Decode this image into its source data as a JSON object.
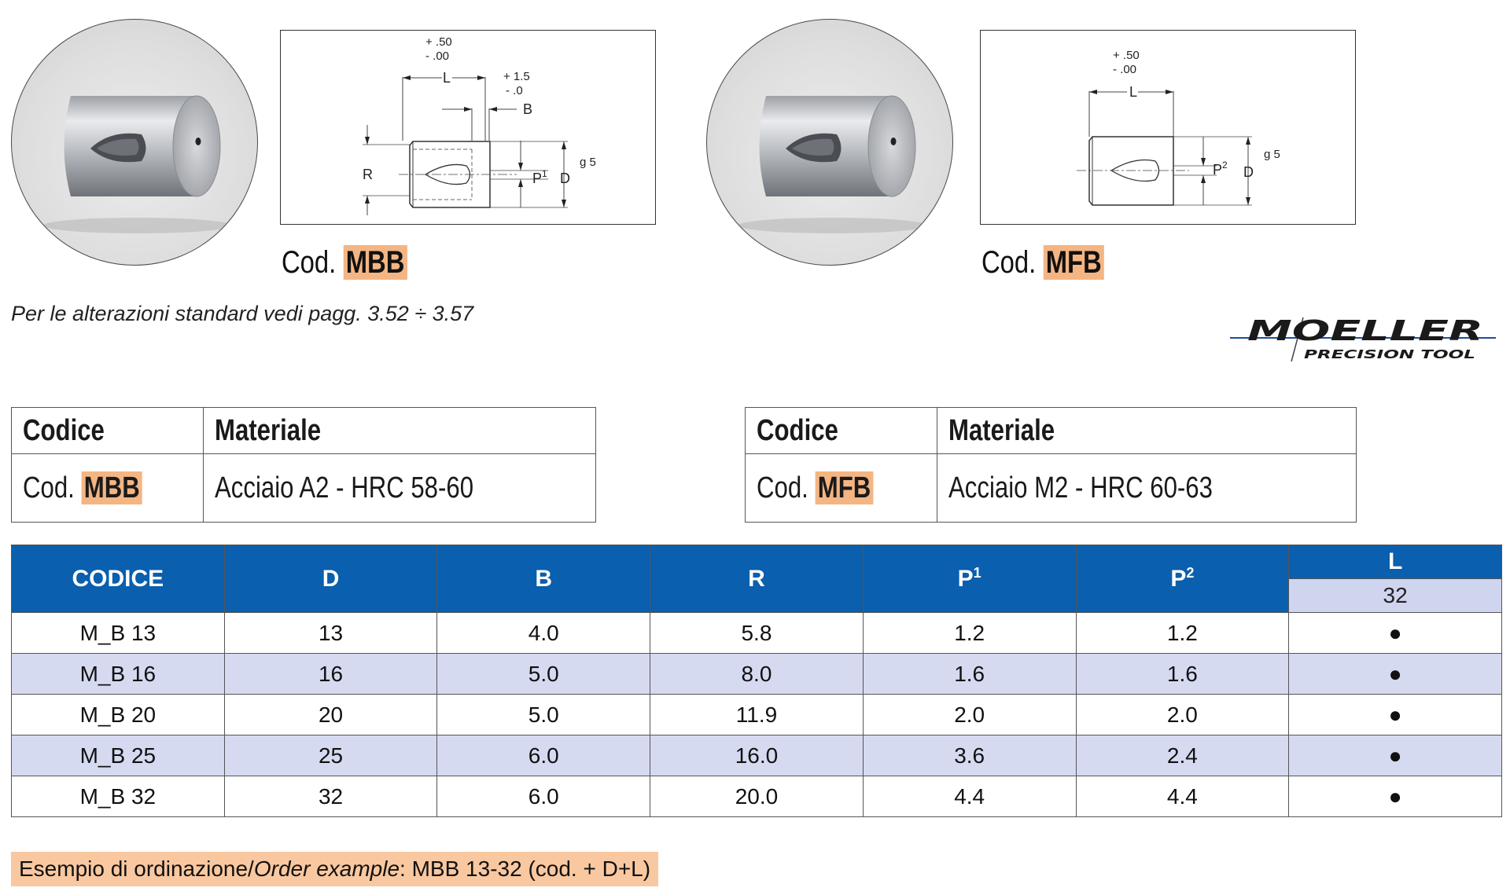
{
  "products": [
    {
      "cod_prefix": "Cod.",
      "code": "MBB",
      "drawing": {
        "tol_L_plus": "+ .50",
        "tol_L_minus": "- .00",
        "label_L": "L",
        "tol_B_plus": "+ 1.5",
        "tol_B_minus": "- .0",
        "label_B": "B",
        "label_R": "R",
        "label_P": "P",
        "label_P_sup": "1",
        "label_D": "D",
        "label_g5": "g 5"
      }
    },
    {
      "cod_prefix": "Cod.",
      "code": "MFB",
      "drawing": {
        "tol_L_plus": "+ .50",
        "tol_L_minus": "- .00",
        "label_L": "L",
        "label_P": "P",
        "label_P_sup": "2",
        "label_D": "D",
        "label_g5": "g 5"
      }
    }
  ],
  "note": "Per le alterazioni standard vedi pagg. 3.52 ÷ 3.57",
  "logo": {
    "name": "MOELLER",
    "tagline": "PRECISION TOOL"
  },
  "material_tables": [
    {
      "header_code": "Codice",
      "header_material": "Materiale",
      "cod_prefix": "Cod.",
      "code": "MBB",
      "material": "Acciaio A2 - HRC 58-60"
    },
    {
      "header_code": "Codice",
      "header_material": "Materiale",
      "cod_prefix": "Cod.",
      "code": "MFB",
      "material": "Acciaio M2 - HRC 60-63"
    }
  ],
  "data_table": {
    "headers": {
      "codice": "CODICE",
      "d": "D",
      "b": "B",
      "r": "R",
      "p1": "P",
      "p1_sup": "1",
      "p2": "P",
      "p2_sup": "2",
      "l": "L",
      "l_sub": "32"
    },
    "rows": [
      {
        "codice": "M_B 13",
        "d": "13",
        "b": "4.0",
        "r": "5.8",
        "p1": "1.2",
        "p2": "1.2",
        "l32": "●"
      },
      {
        "codice": "M_B 16",
        "d": "16",
        "b": "5.0",
        "r": "8.0",
        "p1": "1.6",
        "p2": "1.6",
        "l32": "●"
      },
      {
        "codice": "M_B 20",
        "d": "20",
        "b": "5.0",
        "r": "11.9",
        "p1": "2.0",
        "p2": "2.0",
        "l32": "●"
      },
      {
        "codice": "M_B 25",
        "d": "25",
        "b": "6.0",
        "r": "16.0",
        "p1": "3.6",
        "p2": "2.4",
        "l32": "●"
      },
      {
        "codice": "M_B 32",
        "d": "32",
        "b": "6.0",
        "r": "20.0",
        "p1": "4.4",
        "p2": "4.4",
        "l32": "●"
      }
    ]
  },
  "order_example": {
    "it": "Esempio di ordinazione/",
    "en": "Order example",
    "value": ": MBB 13-32 (cod. + D+L)"
  }
}
